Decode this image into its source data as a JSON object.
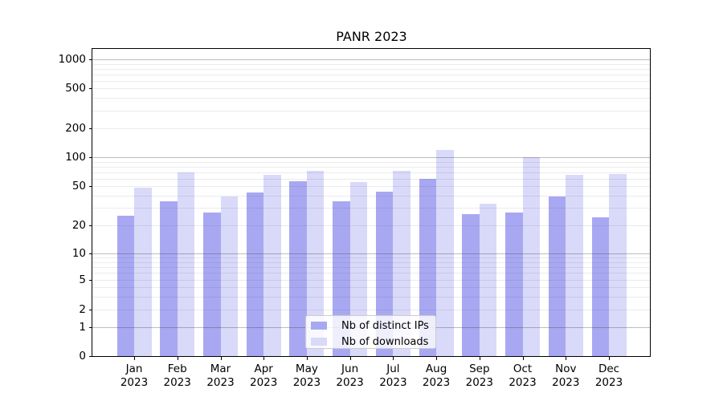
{
  "chart_data": {
    "type": "bar",
    "title": "PANR 2023",
    "months": [
      "Jan",
      "Feb",
      "Mar",
      "Apr",
      "May",
      "Jun",
      "Jul",
      "Aug",
      "Sep",
      "Oct",
      "Nov",
      "Dec"
    ],
    "year_label": "2023",
    "categories": [
      "Jan 2023",
      "Feb 2023",
      "Mar 2023",
      "Apr 2023",
      "May 2023",
      "Jun 2023",
      "Jul 2023",
      "Aug 2023",
      "Sep 2023",
      "Oct 2023",
      "Nov 2023",
      "Dec 2023"
    ],
    "series": [
      {
        "name": "Nb of distinct IPs",
        "color": "#a8a8f2",
        "values": [
          25,
          35,
          27,
          43,
          56,
          35,
          44,
          60,
          26,
          27,
          39,
          24
        ]
      },
      {
        "name": "Nb of downloads",
        "color": "#d9d9f9",
        "values": [
          48,
          70,
          39,
          66,
          72,
          55,
          72,
          118,
          33,
          101,
          66,
          67
        ]
      }
    ],
    "yticks": [
      0,
      1,
      2,
      5,
      10,
      20,
      50,
      100,
      200,
      500,
      1000
    ],
    "yscale": "symlog",
    "ylim": [
      0,
      1270
    ],
    "xlabel": "",
    "ylabel": "",
    "grid": "on",
    "legend_position": "lower center"
  },
  "colors": {
    "background": "#ffffff",
    "bar_distinct_ips": "#a8a8f2",
    "bar_downloads": "#d9d9f9",
    "grid_major": "#bcbcbc",
    "grid_minor": "#ececec",
    "spine": "#000000",
    "text": "#000000",
    "legend_border": "#cccccc"
  }
}
